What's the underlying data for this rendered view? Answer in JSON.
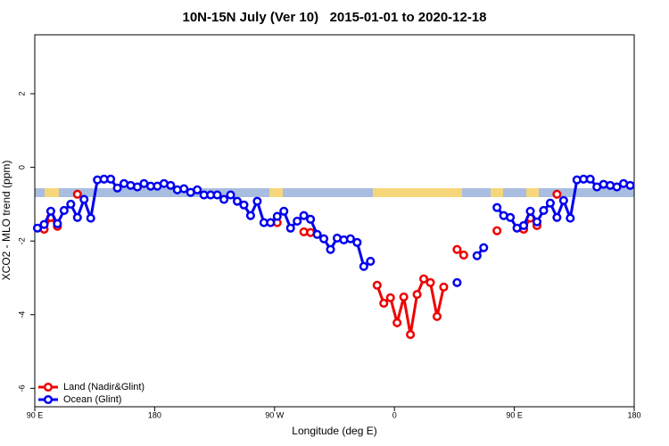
{
  "chart_data": {
    "type": "line",
    "title": "10N-15N July (Ver 10)   2015-01-01 to 2020-12-18",
    "x_label": "Longitude (deg E)",
    "y_label": "XCO2 - MLO trend (ppm)",
    "xlim": [
      90,
      540
    ],
    "ylim": [
      -6.5,
      3.6
    ],
    "xticks": [
      {
        "value": 90,
        "label": "90 E"
      },
      180,
      {
        "value": 270,
        "label": "90 W"
      },
      {
        "value": 360,
        "label": "0"
      },
      {
        "value": 450,
        "label": "90 E"
      },
      {
        "value": 540,
        "label": "180"
      }
    ],
    "yticks": [
      -6,
      -4,
      -2,
      0,
      2
    ],
    "legend": "bottom-left",
    "x": [
      92,
      97,
      102,
      107,
      112,
      117,
      122,
      127,
      132,
      137,
      142,
      147,
      152,
      157,
      162,
      167,
      172,
      177,
      182,
      187,
      192,
      197,
      202,
      207,
      212,
      217,
      222,
      227,
      232,
      237,
      242,
      247,
      252,
      257,
      262,
      267,
      272,
      277,
      282,
      287,
      292,
      297,
      302,
      307,
      312,
      317,
      322,
      327,
      332,
      337,
      342,
      347,
      352,
      357,
      362,
      367,
      372,
      377,
      382,
      387,
      392,
      397,
      402,
      407,
      412,
      417,
      422,
      427,
      432,
      437,
      442,
      447,
      452,
      457,
      462,
      467,
      472,
      477,
      482,
      487,
      492,
      497,
      502,
      507,
      512,
      517,
      522,
      527,
      532,
      537
    ],
    "series": [
      {
        "name": "Land (Nadir&Glint)",
        "color": "#ee0000",
        "values": [
          null,
          -1.68,
          -1.36,
          -1.6,
          null,
          null,
          -0.73,
          null,
          null,
          null,
          null,
          null,
          null,
          null,
          null,
          null,
          null,
          null,
          null,
          null,
          null,
          null,
          null,
          null,
          null,
          null,
          null,
          null,
          null,
          null,
          null,
          null,
          null,
          null,
          null,
          null,
          -1.5,
          null,
          null,
          null,
          -1.75,
          -1.77,
          null,
          null,
          null,
          null,
          null,
          null,
          null,
          null,
          null,
          -3.2,
          -3.69,
          -3.54,
          -4.22,
          -3.52,
          -4.54,
          -3.45,
          -3.03,
          -3.13,
          -4.05,
          -3.25,
          null,
          -2.23,
          -2.38,
          null,
          null,
          null,
          null,
          -1.72,
          null,
          null,
          null,
          -1.68,
          -1.38,
          -1.58,
          null,
          null,
          -0.73,
          null,
          null,
          null,
          null,
          null,
          null,
          null,
          null,
          null,
          null,
          null
        ]
      },
      {
        "name": "Ocean (Glint)",
        "color": "#0000ee",
        "values": [
          -1.65,
          -1.55,
          -1.19,
          -1.53,
          -1.17,
          -1.0,
          -1.36,
          -0.87,
          -1.38,
          -0.34,
          -0.32,
          -0.32,
          -0.56,
          -0.44,
          -0.49,
          -0.53,
          -0.44,
          -0.51,
          -0.51,
          -0.44,
          -0.49,
          -0.61,
          -0.58,
          -0.68,
          -0.61,
          -0.75,
          -0.75,
          -0.75,
          -0.87,
          -0.75,
          -0.92,
          -1.02,
          -1.31,
          -0.92,
          -1.5,
          -1.5,
          -1.33,
          -1.19,
          -1.65,
          -1.46,
          -1.31,
          -1.41,
          -1.82,
          -1.94,
          -2.23,
          -1.92,
          -1.97,
          -1.94,
          -2.04,
          -2.69,
          -2.55,
          null,
          null,
          null,
          null,
          null,
          null,
          null,
          null,
          null,
          null,
          null,
          null,
          -3.13,
          null,
          null,
          -2.4,
          -2.18,
          null,
          -1.09,
          -1.31,
          -1.36,
          -1.65,
          -1.58,
          -1.19,
          -1.48,
          -1.17,
          -0.97,
          -1.36,
          -0.9,
          -1.38,
          -0.34,
          -0.32,
          -0.32,
          -0.53,
          -0.46,
          -0.49,
          -0.53,
          -0.44,
          -0.49
        ]
      }
    ]
  }
}
